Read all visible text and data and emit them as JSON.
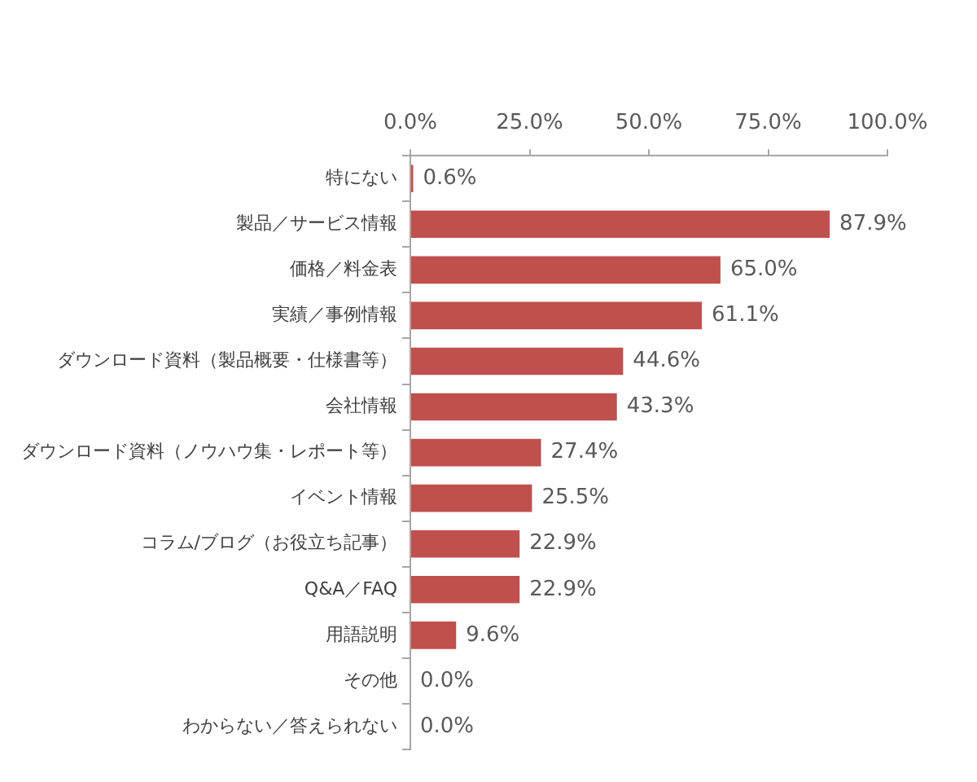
{
  "chart_data": {
    "type": "bar",
    "orientation": "horizontal",
    "categories": [
      "特にない",
      "製品／サービス情報",
      "価格／料金表",
      "実績／事例情報",
      "ダウンロード資料（製品概要・仕様書等）",
      "会社情報",
      "ダウンロード資料（ノウハウ集・レポート等）",
      "イベント情報",
      "コラム/ブログ（お役立ち記事）",
      "Q&A／FAQ",
      "用語説明",
      "その他",
      "わからない／答えられない"
    ],
    "values": [
      0.6,
      87.9,
      65.0,
      61.1,
      44.6,
      43.3,
      27.4,
      25.5,
      22.9,
      22.9,
      9.6,
      0.0,
      0.0
    ],
    "value_labels": [
      "0.6%",
      "87.9%",
      "65.0%",
      "61.1%",
      "44.6%",
      "43.3%",
      "27.4%",
      "25.5%",
      "22.9%",
      "22.9%",
      "9.6%",
      "0.0%",
      "0.0%"
    ],
    "color": "#c0504d",
    "xlim": [
      0,
      100
    ],
    "xticks": [
      {
        "value": 0,
        "label": "0.0%"
      },
      {
        "value": 25,
        "label": "25.0%"
      },
      {
        "value": 50,
        "label": "50.0%"
      },
      {
        "value": 75,
        "label": "75.0%"
      },
      {
        "value": 100,
        "label": "100.0%"
      }
    ],
    "grid": false,
    "legend": false
  }
}
